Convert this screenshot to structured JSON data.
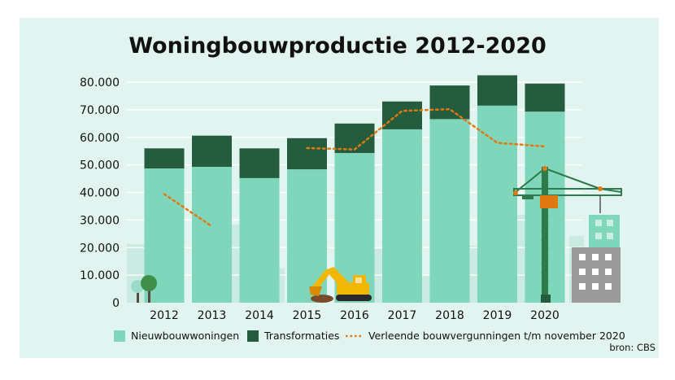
{
  "chart_data": {
    "type": "bar",
    "stacked": true,
    "title": "Woningbouwproductie 2012-2020",
    "categories": [
      "2012",
      "2013",
      "2014",
      "2015",
      "2016",
      "2017",
      "2018",
      "2019",
      "2020"
    ],
    "ylim": [
      0,
      80000
    ],
    "yticks": [
      0,
      10000,
      20000,
      30000,
      40000,
      50000,
      60000,
      70000,
      80000
    ],
    "ytick_labels": [
      "0",
      "10.000",
      "20.000",
      "30.000",
      "40.000",
      "50.000",
      "60.000",
      "70.000",
      "80.000"
    ],
    "grid": true,
    "legend_position": "bottom",
    "series": [
      {
        "name": "Nieuwbouwwoningen",
        "kind": "bar",
        "color": "#7fd6bb",
        "values": [
          48700,
          49300,
          45200,
          48400,
          54300,
          62900,
          66600,
          71500,
          69300
        ]
      },
      {
        "name": "Transformaties",
        "kind": "bar",
        "color": "#245c3d",
        "values": [
          7300,
          11300,
          10800,
          11300,
          10700,
          10100,
          12200,
          11000,
          10200
        ]
      },
      {
        "name": "Verleende bouwvergunningen t/m november 2020",
        "kind": "line",
        "style": "dotted",
        "color": "#e07a10",
        "values": [
          39400,
          27700,
          null,
          56100,
          55600,
          69600,
          70200,
          58000,
          56700
        ]
      }
    ],
    "source": "bron: CBS"
  },
  "colors": {
    "background": "#e2f4ef",
    "grid": "#ffffff",
    "building_light": "#c9ebe1"
  }
}
